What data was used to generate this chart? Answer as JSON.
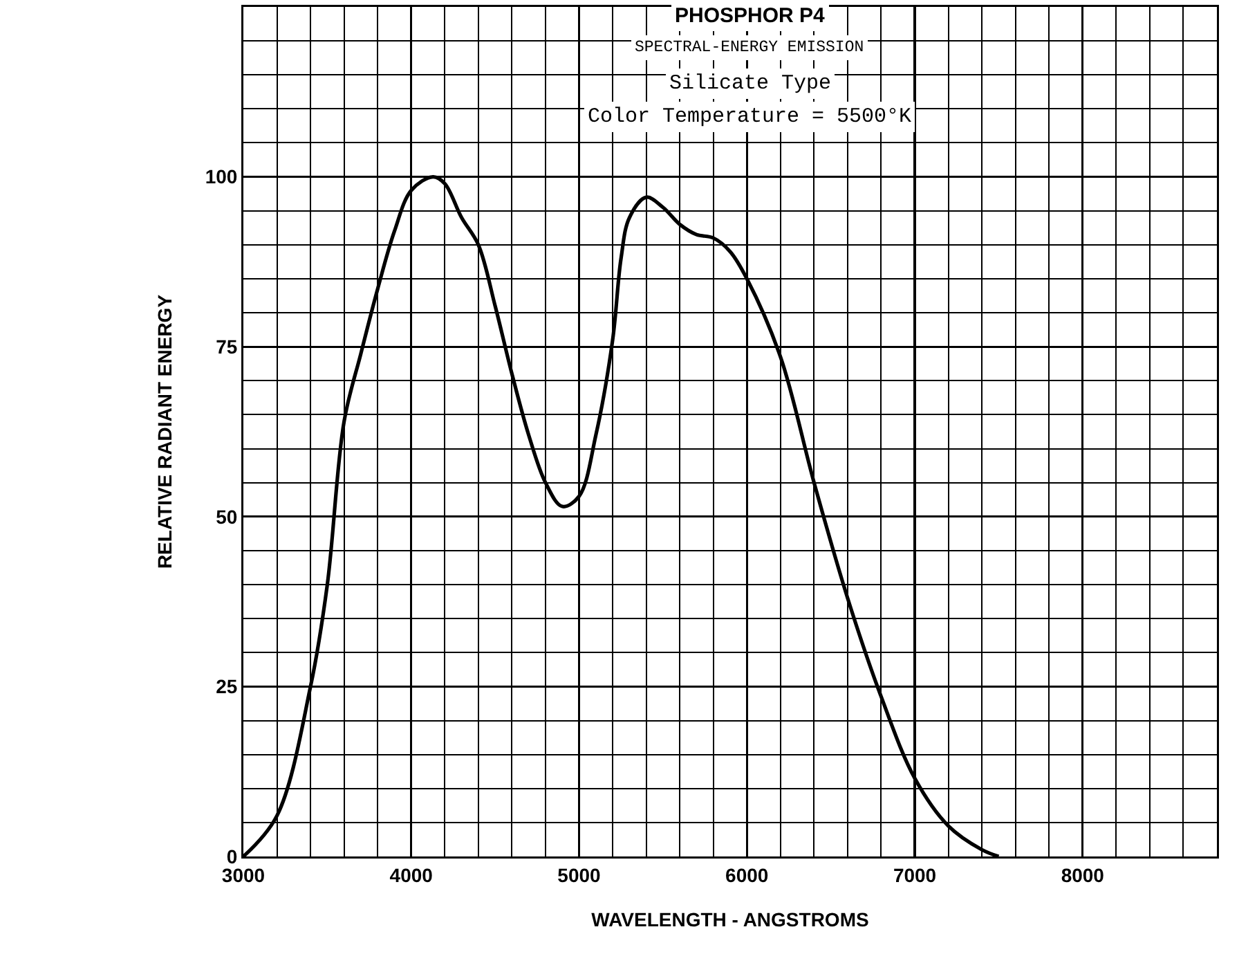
{
  "chart_data": {
    "type": "line",
    "title": "PHOSPHOR P4",
    "subtitle": "SPECTRAL-ENERGY EMISSION",
    "annotations": [
      "Silicate Type",
      "Color Temperature = 5500°K"
    ],
    "xlabel": "WAVELENGTH - ANGSTROMS",
    "ylabel": "RELATIVE RADIANT ENERGY",
    "x": [
      3000,
      3200,
      3400,
      3500,
      3600,
      3700,
      3800,
      3900,
      4000,
      4130,
      4200,
      4300,
      4400,
      4500,
      4600,
      4700,
      4800,
      4900,
      5000,
      5100,
      5200,
      5250,
      5300,
      5400,
      5500,
      5600,
      5700,
      5800,
      5900,
      6000,
      6200,
      6400,
      6600,
      6800,
      7000,
      7200,
      7400,
      7500
    ],
    "series": [
      {
        "color": "#000000",
        "values": [
          0,
          6,
          25,
          40,
          64,
          74,
          83.5,
          92,
          98,
          100,
          99,
          94,
          90,
          81,
          71,
          62,
          55,
          51.5,
          53,
          62,
          76,
          88,
          94,
          97,
          95.5,
          93,
          91.5,
          91,
          89,
          85,
          73.5,
          55,
          38,
          23.5,
          11.5,
          4.5,
          1,
          0
        ]
      }
    ],
    "xlim": [
      3000,
      8800
    ],
    "ylim": [
      0,
      125
    ],
    "xticks": [
      3000,
      4000,
      5000,
      6000,
      7000,
      8000
    ],
    "yticks": [
      0,
      25,
      50,
      75,
      100
    ],
    "grid": true,
    "marker": "none",
    "line_style": "solid"
  }
}
